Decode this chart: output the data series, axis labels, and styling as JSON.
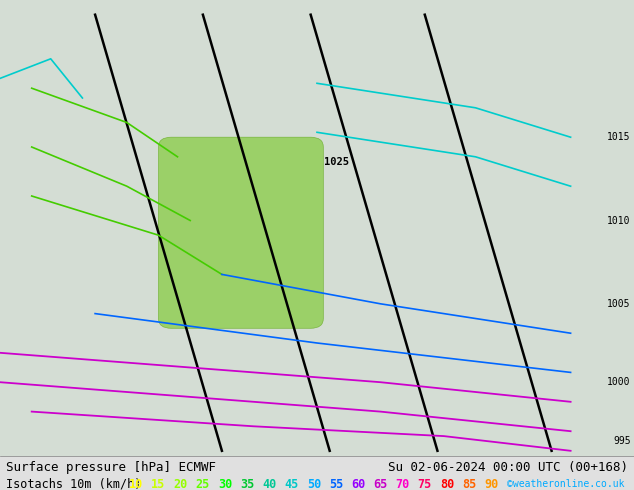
{
  "title_left": "Surface pressure [hPa] ECMWF",
  "title_right": "Su 02-06-2024 00:00 UTC (00+168)",
  "legend_label": "Isotachs 10m (km/h)",
  "copyright": "©weatheronline.co.uk",
  "background_color": "#e0e0e0",
  "map_background": "#d4ddd4",
  "isotach_values": [
    10,
    15,
    20,
    25,
    30,
    35,
    40,
    45,
    50,
    55,
    60,
    65,
    70,
    75,
    80,
    85,
    90
  ],
  "isotach_colors": [
    "#ffff00",
    "#c8ff00",
    "#96ff00",
    "#64ff00",
    "#00ff00",
    "#00c832",
    "#00c896",
    "#00c8c8",
    "#00aaff",
    "#0064ff",
    "#9600ff",
    "#c800c8",
    "#ff00c8",
    "#ff0064",
    "#ff0000",
    "#ff6400",
    "#ff9600"
  ],
  "title_fontsize": 9,
  "legend_fontsize": 8.5,
  "fig_width": 6.34,
  "fig_height": 4.9,
  "dpi": 100,
  "pressure_labels_right": [
    [
      0.72,
      "1015"
    ],
    [
      0.55,
      "1010"
    ],
    [
      0.38,
      "1005"
    ],
    [
      0.22,
      "1000"
    ],
    [
      0.1,
      "995"
    ]
  ],
  "pressure_label_center": [
    0.53,
    0.67,
    "1025"
  ],
  "black_lines": [
    [
      [
        0.15,
        0.35
      ],
      [
        0.97,
        0.08
      ]
    ],
    [
      [
        0.32,
        0.52
      ],
      [
        0.97,
        0.08
      ]
    ],
    [
      [
        0.49,
        0.69
      ],
      [
        0.97,
        0.08
      ]
    ],
    [
      [
        0.67,
        0.87
      ],
      [
        0.97,
        0.08
      ]
    ]
  ],
  "cyan_lines": [
    [
      [
        0.0,
        0.08,
        0.13
      ],
      [
        0.84,
        0.88,
        0.8
      ]
    ],
    [
      [
        0.5,
        0.75,
        0.9
      ],
      [
        0.83,
        0.78,
        0.72
      ]
    ],
    [
      [
        0.5,
        0.75,
        0.9
      ],
      [
        0.73,
        0.68,
        0.62
      ]
    ]
  ],
  "green_lines": [
    [
      [
        0.05,
        0.2,
        0.28
      ],
      [
        0.82,
        0.75,
        0.68
      ]
    ],
    [
      [
        0.05,
        0.2,
        0.3
      ],
      [
        0.7,
        0.62,
        0.55
      ]
    ],
    [
      [
        0.05,
        0.25,
        0.35
      ],
      [
        0.6,
        0.52,
        0.44
      ]
    ]
  ],
  "purple_lines": [
    [
      [
        0.0,
        0.3,
        0.6,
        0.9
      ],
      [
        0.28,
        0.25,
        0.22,
        0.18
      ]
    ],
    [
      [
        0.0,
        0.3,
        0.6,
        0.9
      ],
      [
        0.22,
        0.19,
        0.16,
        0.12
      ]
    ],
    [
      [
        0.05,
        0.4,
        0.7,
        0.9
      ],
      [
        0.16,
        0.13,
        0.11,
        0.08
      ]
    ]
  ],
  "blue_lines": [
    [
      [
        0.35,
        0.6,
        0.9
      ],
      [
        0.44,
        0.38,
        0.32
      ]
    ],
    [
      [
        0.15,
        0.5,
        0.9
      ],
      [
        0.36,
        0.3,
        0.24
      ]
    ]
  ],
  "nz_patch": [
    0.27,
    0.35,
    0.22,
    0.35
  ]
}
